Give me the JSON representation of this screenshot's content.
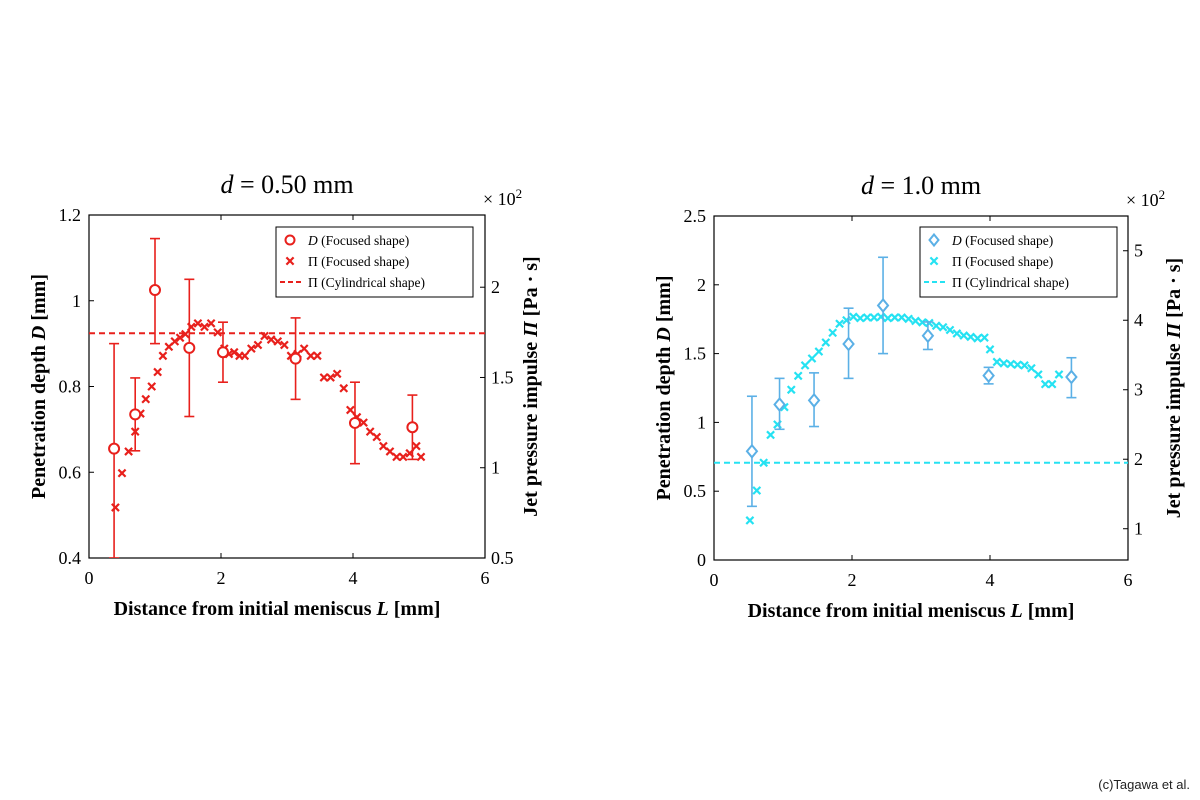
{
  "credit": "(c)Tagawa et al.",
  "chart_data": [
    {
      "type": "scatter",
      "title_prefix": "d",
      "title_rest": " = 0.50 mm",
      "color": "#e8201c",
      "xlabel_text": "Distance from initial meniscus ",
      "xlabel_sym": "L",
      "xlabel_unit": " [mm]",
      "ylabel_text": "Penetration depth ",
      "ylabel_sym": "D",
      "ylabel_unit": " [mm]",
      "y2label_text": "Jet pressure impulse ",
      "y2label_sym": "Π",
      "y2label_unit": " [Pa · s]",
      "y2_multiplier": "× 10",
      "y2_multiplier_exp": "2",
      "xlim": [
        0,
        6
      ],
      "ylim": [
        0.4,
        1.2
      ],
      "y2lim": [
        0.5,
        2.4
      ],
      "xticks": [
        0,
        2,
        4,
        6
      ],
      "yticks": [
        0.4,
        0.6,
        0.8,
        1.0,
        1.2
      ],
      "ytick_labels": [
        "0.4",
        "0.6",
        "0.8",
        "1",
        "1.2"
      ],
      "y2ticks": [
        0.5,
        1.0,
        1.5,
        2.0
      ],
      "y2tick_labels": [
        "0.5",
        "1",
        "1.5",
        "2"
      ],
      "legend_position": "top-right",
      "legend": [
        {
          "sym": "D",
          "text": " (Focused shape)",
          "marker": "circle"
        },
        {
          "sym": "Π",
          "text": " (Focused shape)",
          "marker": "x"
        },
        {
          "sym": "Π",
          "text": " (Cylindrical shape)",
          "marker": "dashed"
        }
      ],
      "series": [
        {
          "axis": "left",
          "marker": "circle",
          "points": [
            {
              "x": 0.38,
              "y": 0.655,
              "lo": 0.4,
              "hi": 0.9
            },
            {
              "x": 0.7,
              "y": 0.735,
              "lo": 0.65,
              "hi": 0.82
            },
            {
              "x": 1.0,
              "y": 1.025,
              "lo": 0.9,
              "hi": 1.145
            },
            {
              "x": 1.52,
              "y": 0.89,
              "lo": 0.73,
              "hi": 1.05
            },
            {
              "x": 2.03,
              "y": 0.88,
              "lo": 0.81,
              "hi": 0.95
            },
            {
              "x": 3.13,
              "y": 0.865,
              "lo": 0.77,
              "hi": 0.96
            },
            {
              "x": 4.03,
              "y": 0.715,
              "lo": 0.62,
              "hi": 0.81
            },
            {
              "x": 4.9,
              "y": 0.705,
              "lo": 0.63,
              "hi": 0.78
            }
          ]
        },
        {
          "axis": "right",
          "marker": "x",
          "points": [
            [
              0.4,
              0.78
            ],
            [
              0.5,
              0.97
            ],
            [
              0.6,
              1.09
            ],
            [
              0.7,
              1.2
            ],
            [
              0.78,
              1.3
            ],
            [
              0.86,
              1.38
            ],
            [
              0.95,
              1.45
            ],
            [
              1.04,
              1.53
            ],
            [
              1.12,
              1.62
            ],
            [
              1.21,
              1.67
            ],
            [
              1.3,
              1.7
            ],
            [
              1.38,
              1.72
            ],
            [
              1.46,
              1.74
            ],
            [
              1.55,
              1.78
            ],
            [
              1.65,
              1.8
            ],
            [
              1.75,
              1.78
            ],
            [
              1.85,
              1.8
            ],
            [
              1.95,
              1.75
            ],
            [
              2.05,
              1.66
            ],
            [
              2.12,
              1.63
            ],
            [
              2.2,
              1.64
            ],
            [
              2.28,
              1.62
            ],
            [
              2.36,
              1.62
            ],
            [
              2.46,
              1.66
            ],
            [
              2.56,
              1.68
            ],
            [
              2.66,
              1.73
            ],
            [
              2.76,
              1.71
            ],
            [
              2.86,
              1.7
            ],
            [
              2.96,
              1.68
            ],
            [
              3.06,
              1.62
            ],
            [
              3.16,
              1.63
            ],
            [
              3.26,
              1.66
            ],
            [
              3.36,
              1.62
            ],
            [
              3.46,
              1.62
            ],
            [
              3.56,
              1.5
            ],
            [
              3.66,
              1.5
            ],
            [
              3.76,
              1.52
            ],
            [
              3.86,
              1.44
            ],
            [
              3.96,
              1.32
            ],
            [
              4.06,
              1.28
            ],
            [
              4.16,
              1.25
            ],
            [
              4.26,
              1.2
            ],
            [
              4.36,
              1.17
            ],
            [
              4.46,
              1.12
            ],
            [
              4.56,
              1.09
            ],
            [
              4.66,
              1.06
            ],
            [
              4.76,
              1.06
            ],
            [
              4.86,
              1.08
            ],
            [
              4.96,
              1.12
            ],
            [
              5.03,
              1.06
            ]
          ]
        },
        {
          "axis": "right",
          "marker": "dashed",
          "y": 1.745
        }
      ]
    },
    {
      "type": "scatter",
      "title_prefix": "d",
      "title_rest": " = 1.0 mm",
      "color": "#5bb0e6",
      "color2": "#25e2f2",
      "xlabel_text": "Distance from initial meniscus ",
      "xlabel_sym": "L",
      "xlabel_unit": " [mm]",
      "ylabel_text": "Penetration depth ",
      "ylabel_sym": "D",
      "ylabel_unit": " [mm]",
      "y2label_text": "Jet pressure impulse ",
      "y2label_sym": "Π",
      "y2label_unit": " [Pa · s]",
      "y2_multiplier": "× 10",
      "y2_multiplier_exp": "2",
      "xlim": [
        0,
        6
      ],
      "ylim": [
        0,
        2.5
      ],
      "y2lim": [
        0.55,
        5.5
      ],
      "xticks": [
        0,
        2,
        4,
        6
      ],
      "yticks": [
        0,
        0.5,
        1.0,
        1.5,
        2.0,
        2.5
      ],
      "ytick_labels": [
        "0",
        "0.5",
        "1",
        "1.5",
        "2",
        "2.5"
      ],
      "y2ticks": [
        1,
        2,
        3,
        4,
        5
      ],
      "y2tick_labels": [
        "1",
        "2",
        "3",
        "4",
        "5"
      ],
      "legend_position": "top-right",
      "legend": [
        {
          "sym": "D",
          "text": " (Focused shape)",
          "marker": "diamond"
        },
        {
          "sym": "Π",
          "text": " (Focused shape)",
          "marker": "x"
        },
        {
          "sym": "Π",
          "text": " (Cylindrical shape)",
          "marker": "dashed"
        }
      ],
      "series": [
        {
          "axis": "left",
          "marker": "diamond",
          "points": [
            {
              "x": 0.55,
              "y": 0.79,
              "lo": 0.39,
              "hi": 1.19
            },
            {
              "x": 0.95,
              "y": 1.13,
              "lo": 0.95,
              "hi": 1.32
            },
            {
              "x": 1.45,
              "y": 1.16,
              "lo": 0.97,
              "hi": 1.36
            },
            {
              "x": 1.95,
              "y": 1.57,
              "lo": 1.32,
              "hi": 1.83
            },
            {
              "x": 2.45,
              "y": 1.85,
              "lo": 1.5,
              "hi": 2.2
            },
            {
              "x": 3.1,
              "y": 1.63,
              "lo": 1.53,
              "hi": 1.73
            },
            {
              "x": 3.98,
              "y": 1.34,
              "lo": 1.28,
              "hi": 1.4
            },
            {
              "x": 5.18,
              "y": 1.33,
              "lo": 1.18,
              "hi": 1.47
            }
          ]
        },
        {
          "axis": "right",
          "marker": "x",
          "points": [
            [
              0.52,
              1.12
            ],
            [
              0.62,
              1.55
            ],
            [
              0.72,
              1.95
            ],
            [
              0.82,
              2.35
            ],
            [
              0.92,
              2.5
            ],
            [
              1.02,
              2.75
            ],
            [
              1.12,
              3.0
            ],
            [
              1.22,
              3.2
            ],
            [
              1.32,
              3.35
            ],
            [
              1.42,
              3.45
            ],
            [
              1.52,
              3.55
            ],
            [
              1.62,
              3.68
            ],
            [
              1.72,
              3.82
            ],
            [
              1.82,
              3.95
            ],
            [
              1.92,
              4.0
            ],
            [
              2.02,
              4.05
            ],
            [
              2.12,
              4.03
            ],
            [
              2.22,
              4.04
            ],
            [
              2.32,
              4.04
            ],
            [
              2.42,
              4.05
            ],
            [
              2.52,
              4.03
            ],
            [
              2.62,
              4.04
            ],
            [
              2.72,
              4.04
            ],
            [
              2.82,
              4.02
            ],
            [
              2.92,
              3.99
            ],
            [
              3.02,
              3.97
            ],
            [
              3.12,
              3.96
            ],
            [
              3.22,
              3.92
            ],
            [
              3.32,
              3.9
            ],
            [
              3.42,
              3.86
            ],
            [
              3.52,
              3.81
            ],
            [
              3.62,
              3.78
            ],
            [
              3.72,
              3.76
            ],
            [
              3.82,
              3.74
            ],
            [
              3.92,
              3.75
            ],
            [
              4.0,
              3.58
            ],
            [
              4.1,
              3.4
            ],
            [
              4.2,
              3.38
            ],
            [
              4.3,
              3.37
            ],
            [
              4.4,
              3.36
            ],
            [
              4.5,
              3.35
            ],
            [
              4.6,
              3.31
            ],
            [
              4.7,
              3.22
            ],
            [
              4.8,
              3.08
            ],
            [
              4.9,
              3.08
            ],
            [
              5.0,
              3.22
            ]
          ]
        },
        {
          "axis": "right",
          "marker": "dashed",
          "y": 1.95
        }
      ]
    }
  ]
}
